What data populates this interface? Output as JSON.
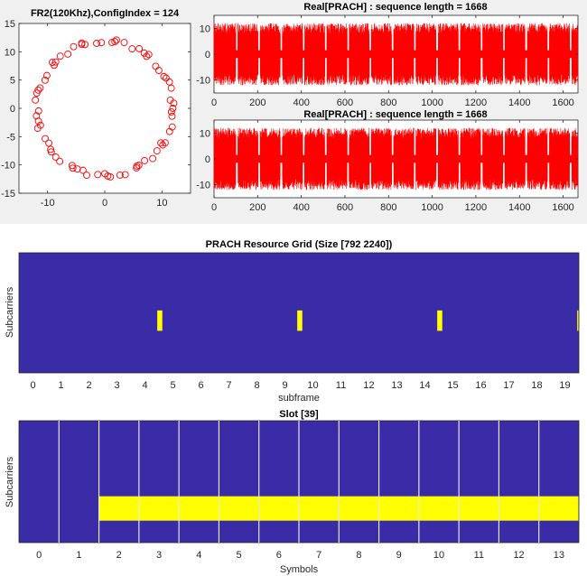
{
  "chart_data": [
    {
      "id": "constellation",
      "type": "scatter",
      "title": "FR2(120Khz),ConfigIndex = 124",
      "xlim": [
        -15,
        15
      ],
      "ylim": [
        -15,
        15
      ],
      "xticks": [
        -10,
        0,
        10
      ],
      "yticks": [
        -15,
        -10,
        -5,
        0,
        5,
        10,
        15
      ],
      "marker": "circle",
      "color": "#ff0000",
      "radius": 11.9,
      "points": 70
    },
    {
      "id": "prach-real-1",
      "type": "line",
      "title": "Real[PRACH] : sequence length = 1668",
      "xlim": [
        0,
        1668
      ],
      "ylim": [
        -15,
        15
      ],
      "xticks": [
        0,
        200,
        400,
        600,
        800,
        1000,
        1200,
        1400,
        1600
      ],
      "yticks": [
        -10,
        0,
        10
      ],
      "color": "#ff0000",
      "amplitude": 12
    },
    {
      "id": "prach-real-2",
      "type": "line",
      "title": "Real[PRACH] : sequence length = 1668",
      "xlim": [
        0,
        1668
      ],
      "ylim": [
        -15,
        15
      ],
      "xticks": [
        0,
        200,
        400,
        600,
        800,
        1000,
        1200,
        1400,
        1600
      ],
      "yticks": [
        -10,
        0,
        10
      ],
      "color": "#ff0000",
      "amplitude": 12
    },
    {
      "id": "resource-grid",
      "type": "heatmap",
      "title": "PRACH Resource Grid (Size [792 2240])",
      "xlabel": "subframe",
      "ylabel": "Subcarriers",
      "xlim": [
        -0.5,
        19.5
      ],
      "xticks": [
        0,
        1,
        2,
        3,
        4,
        5,
        6,
        7,
        8,
        9,
        10,
        11,
        12,
        13,
        14,
        15,
        16,
        17,
        18,
        19
      ],
      "background_color": "#3a2ba6",
      "highlight_color": "#ffff00",
      "highlights": [
        {
          "x": 4.44,
          "width": 0.18,
          "y_from": 0.48,
          "y_to": 0.65
        },
        {
          "x": 9.44,
          "width": 0.18,
          "y_from": 0.48,
          "y_to": 0.65
        },
        {
          "x": 14.44,
          "width": 0.18,
          "y_from": 0.48,
          "y_to": 0.65
        },
        {
          "x": 19.44,
          "width": 0.18,
          "y_from": 0.48,
          "y_to": 0.65
        }
      ]
    },
    {
      "id": "slot",
      "type": "heatmap",
      "title": "Slot [39]",
      "xlabel": "Symbols",
      "ylabel": "Subcarriers",
      "xlim": [
        -0.5,
        13.5
      ],
      "xticks": [
        0,
        1,
        2,
        3,
        4,
        5,
        6,
        7,
        8,
        9,
        10,
        11,
        12,
        13
      ],
      "background_color": "#3a2ba6",
      "highlight_color": "#ffff00",
      "symbol_boundaries": [
        0.5,
        1.5,
        2.5,
        3.5,
        4.5,
        5.5,
        6.5,
        7.5,
        8.5,
        9.5,
        10.5,
        11.5,
        12.5
      ],
      "highlight": {
        "x_from": 1.5,
        "x_to": 13.5,
        "y_from": 0.62,
        "y_to": 0.82
      }
    }
  ]
}
